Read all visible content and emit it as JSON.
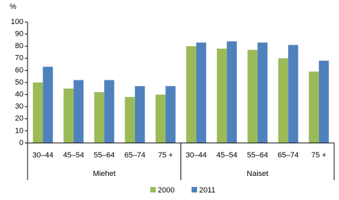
{
  "chart_data": {
    "type": "bar",
    "y_label": "%",
    "categories": [
      "30–44",
      "45–54",
      "55–64",
      "65–74",
      "75 +",
      "30–44",
      "45–54",
      "55–64",
      "65–74",
      "75 +"
    ],
    "group_labels": [
      "Miehet",
      "Naiset"
    ],
    "series": [
      {
        "name": "2000",
        "color": "#9bbb59",
        "values": [
          50,
          45,
          42,
          38,
          40,
          80,
          78,
          77,
          70,
          59
        ]
      },
      {
        "name": "2011",
        "color": "#4f81bd",
        "values": [
          63,
          52,
          52,
          47,
          47,
          83,
          84,
          83,
          81,
          68
        ]
      }
    ],
    "ylim": [
      0,
      100
    ],
    "yticks": [
      0,
      10,
      20,
      30,
      40,
      50,
      60,
      70,
      80,
      90,
      100
    ],
    "grid": false
  }
}
